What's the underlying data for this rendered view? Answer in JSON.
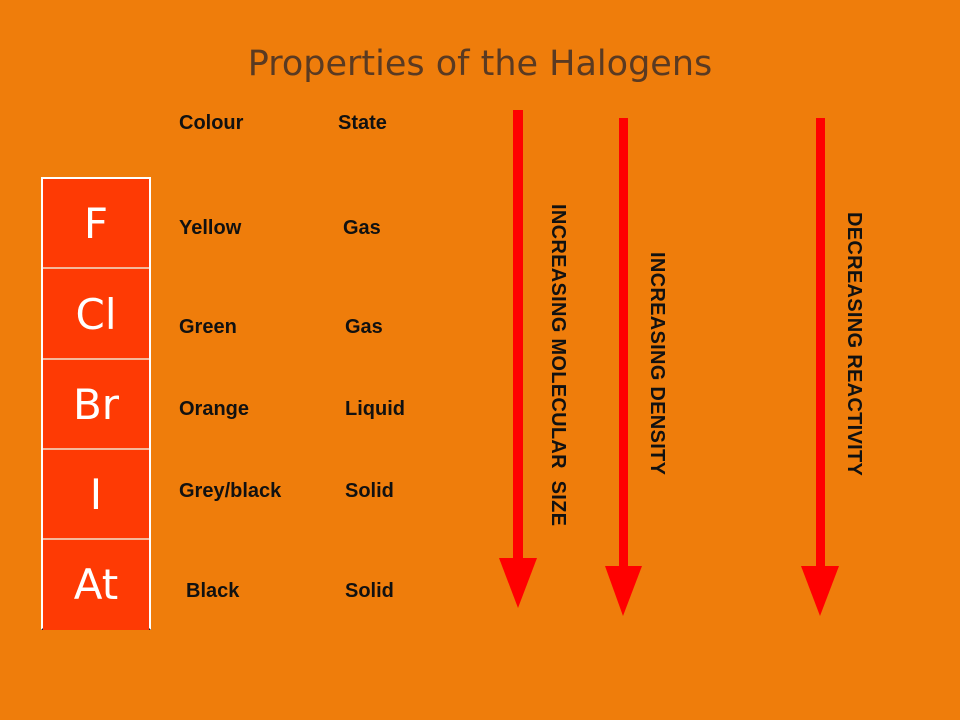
{
  "title": "Properties of the Halogens",
  "headers": {
    "colour": "Colour",
    "state": "State"
  },
  "elements": [
    {
      "symbol": "F",
      "colour": "Yellow",
      "state": "Gas"
    },
    {
      "symbol": "Cl",
      "colour": "Green",
      "state": "Gas"
    },
    {
      "symbol": "Br",
      "colour": "Orange",
      "state": "Liquid"
    },
    {
      "symbol": "I",
      "colour": "Grey/black",
      "state": "Solid"
    },
    {
      "symbol": "At",
      "colour": "Black",
      "state": "Solid"
    }
  ],
  "trends": [
    {
      "label": "INCREASING MOLECULAR  SIZE"
    },
    {
      "label": "INCREASING DENSITY"
    },
    {
      "label": "DECREASING REACTIVITY"
    }
  ],
  "colors": {
    "background": "#ef7d0b",
    "element_box": "#fe3a04",
    "arrow": "#ff0000",
    "title": "#5a3a22"
  }
}
